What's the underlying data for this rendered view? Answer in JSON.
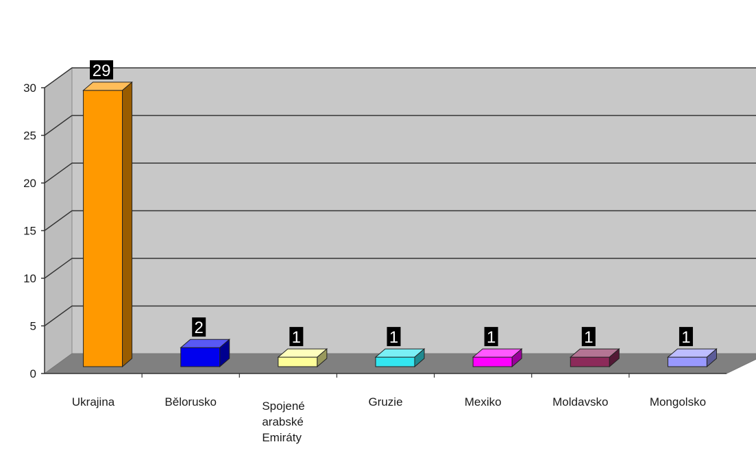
{
  "chart_data": {
    "type": "bar",
    "title": "",
    "xlabel": "",
    "ylabel": "",
    "categories": [
      "Ukrajina",
      "Bělorusko",
      "Spojené arabské Emiráty",
      "Gruzie",
      "Mexiko",
      "Moldavsko",
      "Mongolsko"
    ],
    "category_lines": [
      [
        "Ukrajina"
      ],
      [
        "Bělorusko"
      ],
      [
        "Spojené",
        "arabské",
        "Emiráty"
      ],
      [
        "Gruzie"
      ],
      [
        "Mexiko"
      ],
      [
        "Moldavsko"
      ],
      [
        "Mongolsko"
      ]
    ],
    "values": [
      29,
      2,
      1,
      1,
      1,
      1,
      1
    ],
    "data_labels": [
      "29",
      "2",
      "1",
      "1",
      "1",
      "1",
      "1"
    ],
    "colors": [
      "#ff9900",
      "#0000ee",
      "#ffff99",
      "#33e6f0",
      "#ff00ff",
      "#8c2a5a",
      "#9999ff"
    ],
    "ylim": [
      0,
      30
    ],
    "yticks": [
      "0",
      "5",
      "10",
      "15",
      "20",
      "25",
      "30"
    ],
    "grid": true,
    "legend": "none",
    "style": "3d-column",
    "wall_color": "#c8c8c8",
    "floor_color": "#808080",
    "gridline_color": "#333333"
  }
}
